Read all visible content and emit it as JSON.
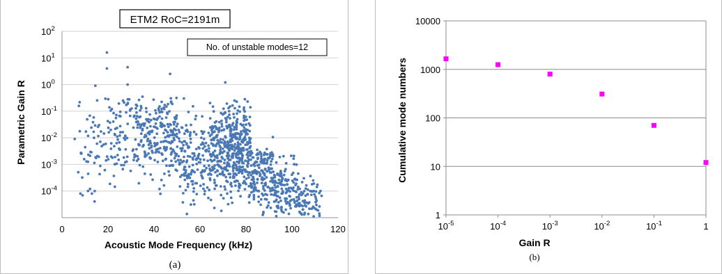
{
  "chart_data": [
    {
      "type": "scatter",
      "title": "ETM2 RoC=2191m",
      "annotation": "No.  of unstable modes=12",
      "xlabel": "Acoustic Mode Frequency (kHz)",
      "ylabel": "Parametric Gain R",
      "xlim": [
        0,
        120
      ],
      "x_ticks": [
        "0",
        "20",
        "40",
        "60",
        "80",
        "100",
        "120"
      ],
      "ylim_log10": [
        -5,
        2
      ],
      "y_ticks": [
        {
          "base": "10",
          "exp": "2"
        },
        {
          "base": "10",
          "exp": "1"
        },
        {
          "base": "10",
          "exp": "0"
        },
        {
          "base": "10",
          "exp": "-1"
        },
        {
          "base": "10",
          "exp": "-2"
        },
        {
          "base": "10",
          "exp": "-3"
        },
        {
          "base": "10",
          "exp": "-4"
        }
      ],
      "grid": "horizontal",
      "marker_color": "#4a78b5",
      "caption": "(a)",
      "highlighted_points": [
        [
          19.5,
          16
        ],
        [
          19.5,
          4
        ],
        [
          28.5,
          4.5
        ],
        [
          28.5,
          1.0
        ],
        [
          47,
          2.5
        ],
        [
          71,
          1.2
        ],
        [
          14.5,
          0.9
        ],
        [
          35,
          0.35
        ],
        [
          75,
          0.25
        ],
        [
          53,
          0.3
        ],
        [
          5.5,
          0.009
        ],
        [
          8,
          8e-05
        ],
        [
          13,
          8e-05
        ]
      ]
    },
    {
      "type": "scatter",
      "xlabel": "Gain R",
      "ylabel": "Cumulative mode numbers",
      "x_log10_range": [
        -5,
        0
      ],
      "x_ticks": [
        {
          "base": "10",
          "exp": "-5"
        },
        {
          "base": "10",
          "exp": "-4"
        },
        {
          "base": "10",
          "exp": "-3"
        },
        {
          "base": "10",
          "exp": "-2"
        },
        {
          "base": "10",
          "exp": "-1"
        },
        {
          "base": "1",
          "exp": ""
        }
      ],
      "y_log10_range": [
        0,
        4
      ],
      "y_ticks": [
        "1",
        "10",
        "100",
        "1000",
        "10000"
      ],
      "grid": "horizontal",
      "marker_color": "#ff00ff",
      "caption": "(b)",
      "points": [
        {
          "x": 1e-05,
          "y": 1650
        },
        {
          "x": 0.0001,
          "y": 1250
        },
        {
          "x": 0.001,
          "y": 800
        },
        {
          "x": 0.01,
          "y": 310
        },
        {
          "x": 0.1,
          "y": 70
        },
        {
          "x": 1,
          "y": 12
        }
      ]
    }
  ]
}
